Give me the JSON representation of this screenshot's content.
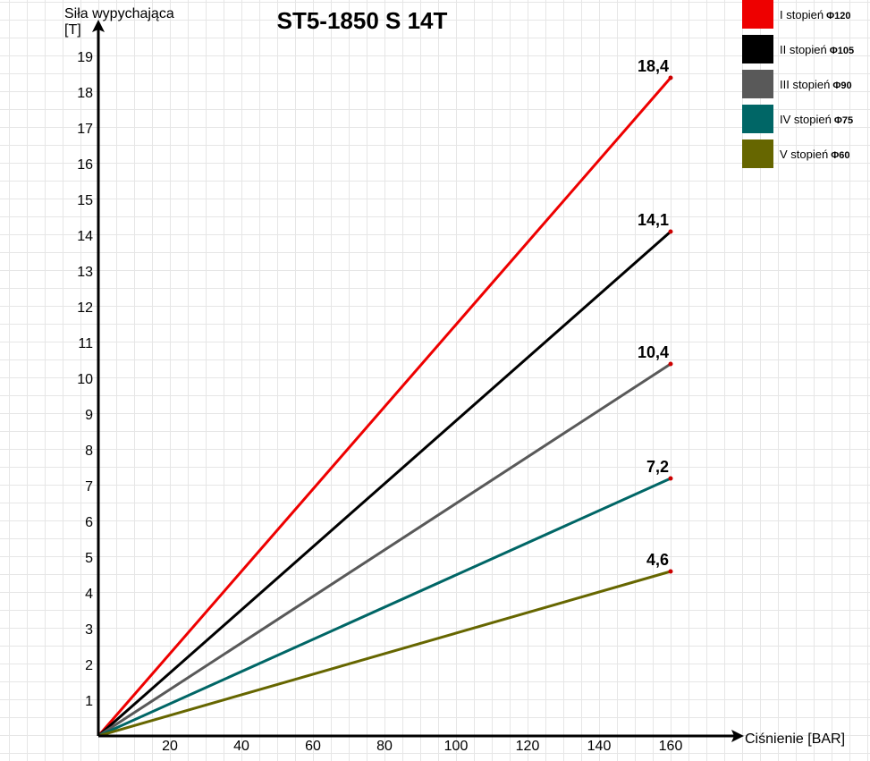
{
  "chart_data": {
    "type": "line",
    "title": "ST5-1850 S 14T",
    "ylabel": "Siła wypychająca",
    "ylabel_unit": "[T]",
    "xlabel": "Ciśnienie [BAR]",
    "xlim": [
      0,
      160
    ],
    "ylim": [
      0,
      19
    ],
    "x_ticks": [
      "20",
      "40",
      "60",
      "80",
      "100",
      "120",
      "140",
      "160"
    ],
    "y_ticks": [
      "1",
      "2",
      "3",
      "4",
      "5",
      "6",
      "7",
      "8",
      "9",
      "10",
      "11",
      "12",
      "13",
      "14",
      "15",
      "16",
      "17",
      "18",
      "19"
    ],
    "grid": true,
    "legend_position": "top-right",
    "series": [
      {
        "name": "I stopień",
        "diameter": "Φ120",
        "color": "#ee0000",
        "x": [
          0,
          160
        ],
        "y": [
          0,
          18.4
        ],
        "end_label": "18,4"
      },
      {
        "name": "II stopień",
        "diameter": "Φ105",
        "color": "#000000",
        "x": [
          0,
          160
        ],
        "y": [
          0,
          14.1
        ],
        "end_label": "14,1"
      },
      {
        "name": "III stopień",
        "diameter": "Φ90",
        "color": "#595959",
        "x": [
          0,
          160
        ],
        "y": [
          0,
          10.4
        ],
        "end_label": "10,4"
      },
      {
        "name": "IV stopień",
        "diameter": "Φ75",
        "color": "#006666",
        "x": [
          0,
          160
        ],
        "y": [
          0,
          7.2
        ],
        "end_label": "7,2"
      },
      {
        "name": "V stopień",
        "diameter": "Φ60",
        "color": "#666600",
        "x": [
          0,
          160
        ],
        "y": [
          0,
          4.6
        ],
        "end_label": "4,6"
      }
    ]
  }
}
